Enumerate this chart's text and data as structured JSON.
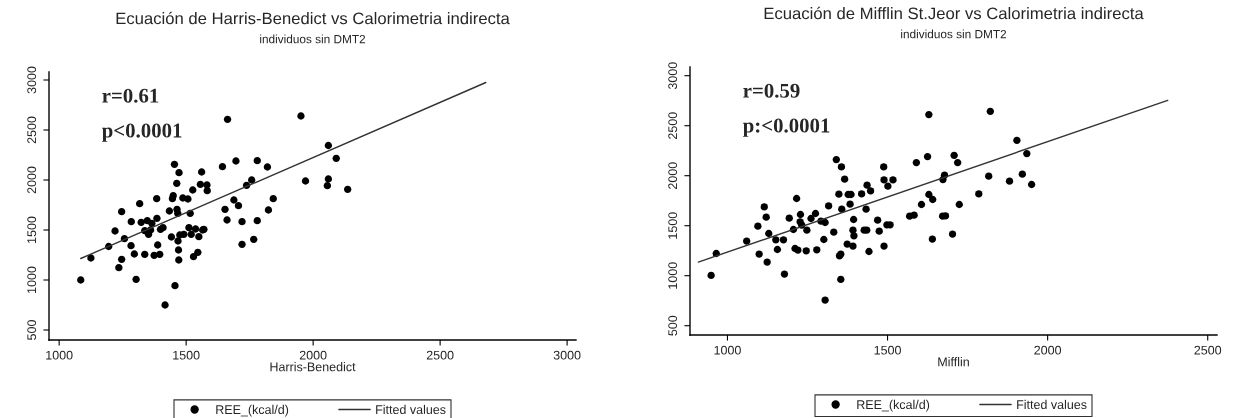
{
  "chart_data": [
    {
      "type": "scatter",
      "title": "Ecuación de Harris-Benedict vs Calorimetria indirecta",
      "subtitle": "individuos sin DMT2",
      "xlabel": "Harris-Benedict",
      "annotations": [
        "r=0.61",
        "p<0.0001"
      ],
      "xlim": [
        960,
        3035
      ],
      "ylim": [
        400,
        3080
      ],
      "xticks": [
        1000,
        1500,
        2000,
        2500,
        3000
      ],
      "yticks": [
        500,
        1000,
        1500,
        2000,
        2500,
        3000
      ],
      "grid": false,
      "legend": "bottom",
      "series": [
        {
          "name": "REE_(kcal/d)",
          "marker": "circle",
          "color": "#000000",
          "x": [
            1085,
            1125,
            1195,
            1220,
            1235,
            1246,
            1246,
            1257,
            1283,
            1284,
            1296,
            1303,
            1317,
            1323,
            1337,
            1337,
            1347,
            1352,
            1360,
            1365,
            1374,
            1384,
            1385,
            1388,
            1396,
            1399,
            1409,
            1417,
            1434,
            1442,
            1446,
            1449,
            1454,
            1456,
            1463,
            1464,
            1467,
            1468,
            1470,
            1471,
            1472,
            1475,
            1487,
            1491,
            1507,
            1511,
            1516,
            1520,
            1526,
            1529,
            1537,
            1546,
            1550,
            1556,
            1561,
            1565,
            1570,
            1582,
            1583,
            1643,
            1653,
            1661,
            1663,
            1696,
            1688,
            1706,
            1720,
            1720,
            1738,
            1758,
            1766,
            1780,
            1780,
            1820,
            1824,
            1843,
            1952,
            1970,
            2060,
            2091,
            2060,
            2056,
            2136
          ],
          "values": [
            1000,
            1220,
            1335,
            1490,
            1123,
            1683,
            1207,
            1413,
            1343,
            1583,
            1260,
            1007,
            1763,
            1577,
            1257,
            1493,
            1593,
            1457,
            1500,
            1567,
            1247,
            1813,
            1617,
            1350,
            1257,
            1507,
            1523,
            750,
            1690,
            1430,
            1813,
            1843,
            2157,
            943,
            1967,
            1707,
            1667,
            1390,
            1300,
            1200,
            2073,
            1450,
            1820,
            1457,
            1810,
            1523,
            1667,
            1457,
            1900,
            1233,
            1510,
            1277,
            1433,
            1957,
            2080,
            1500,
            1507,
            1950,
            1893,
            2133,
            1707,
            1600,
            2607,
            2190,
            1800,
            1743,
            1583,
            1357,
            1947,
            2000,
            1407,
            2193,
            1593,
            2130,
            1700,
            1813,
            2640,
            1990,
            2345,
            2217,
            2010,
            1943,
            1907
          ]
        },
        {
          "name": "Fitted values",
          "type": "line",
          "line_style": "solid",
          "marker": "none",
          "color": "#333333",
          "x": [
            1085,
            2680
          ],
          "values": [
            1215,
            2975
          ]
        }
      ]
    },
    {
      "type": "scatter",
      "title": "Ecuación de Mifflin St.Jeor vs Calorimetria indirecta",
      "subtitle": "individuos sin DMT2",
      "xlabel": "Mifflin",
      "annotations": [
        "r=0.59",
        "p:<0.0001"
      ],
      "xlim": [
        883,
        2529
      ],
      "ylim": [
        407,
        3087
      ],
      "xticks": [
        1000,
        1500,
        2000,
        2500
      ],
      "yticks": [
        500,
        1000,
        1500,
        2000,
        2500,
        3000
      ],
      "grid": false,
      "legend": "bottom",
      "series": [
        {
          "name": "REE_(kcal/d)",
          "marker": "circle",
          "color": "#000000",
          "x": [
            949,
            965,
            1060,
            1095,
            1099,
            1115,
            1121,
            1124,
            1129,
            1151,
            1156,
            1175,
            1178,
            1193,
            1206,
            1216,
            1211,
            1220,
            1227,
            1228,
            1232,
            1246,
            1248,
            1261,
            1275,
            1279,
            1292,
            1301,
            1305,
            1305,
            1316,
            1332,
            1340,
            1350,
            1354,
            1354,
            1348,
            1356,
            1357,
            1366,
            1374,
            1377,
            1383,
            1386,
            1392,
            1392,
            1394,
            1395,
            1419,
            1427,
            1433,
            1436,
            1435,
            1442,
            1447,
            1469,
            1474,
            1488,
            1489,
            1489,
            1498,
            1501,
            1508,
            1517,
            1569,
            1583,
            1590,
            1606,
            1625,
            1629,
            1629,
            1640,
            1641,
            1673,
            1678,
            1672,
            1681,
            1703,
            1708,
            1719,
            1724,
            1785,
            1816,
            1821,
            1881,
            1904,
            1921,
            1935,
            1950
          ],
          "values": [
            1003,
            1222,
            1346,
            1495,
            1216,
            1688,
            1585,
            1136,
            1422,
            1359,
            1262,
            1359,
            1016,
            1575,
            1462,
            1772,
            1272,
            1256,
            1539,
            1612,
            1505,
            1249,
            1455,
            1572,
            1622,
            1259,
            1545,
            1362,
            1532,
            756,
            1698,
            1435,
            2161,
            1199,
            963,
            1216,
            1815,
            2088,
            1665,
            1965,
            1316,
            1812,
            1715,
            1812,
            1296,
            1455,
            1562,
            1399,
            1818,
            1455,
            1665,
            1905,
            1455,
            1242,
            1848,
            1555,
            1445,
            2088,
            1296,
            1958,
            1509,
            1895,
            1509,
            1958,
            1595,
            1605,
            2131,
            1712,
            2191,
            2611,
            1812,
            1366,
            1762,
            1961,
            2005,
            1595,
            1598,
            1416,
            2204,
            2131,
            1712,
            1818,
            1995,
            2644,
            1945,
            2354,
            2015,
            2221,
            1912
          ]
        },
        {
          "name": "Fitted values",
          "type": "line",
          "line_style": "solid",
          "marker": "none",
          "color": "#333333",
          "x": [
            909,
            2375
          ],
          "values": [
            1136,
            2754
          ]
        }
      ]
    }
  ]
}
